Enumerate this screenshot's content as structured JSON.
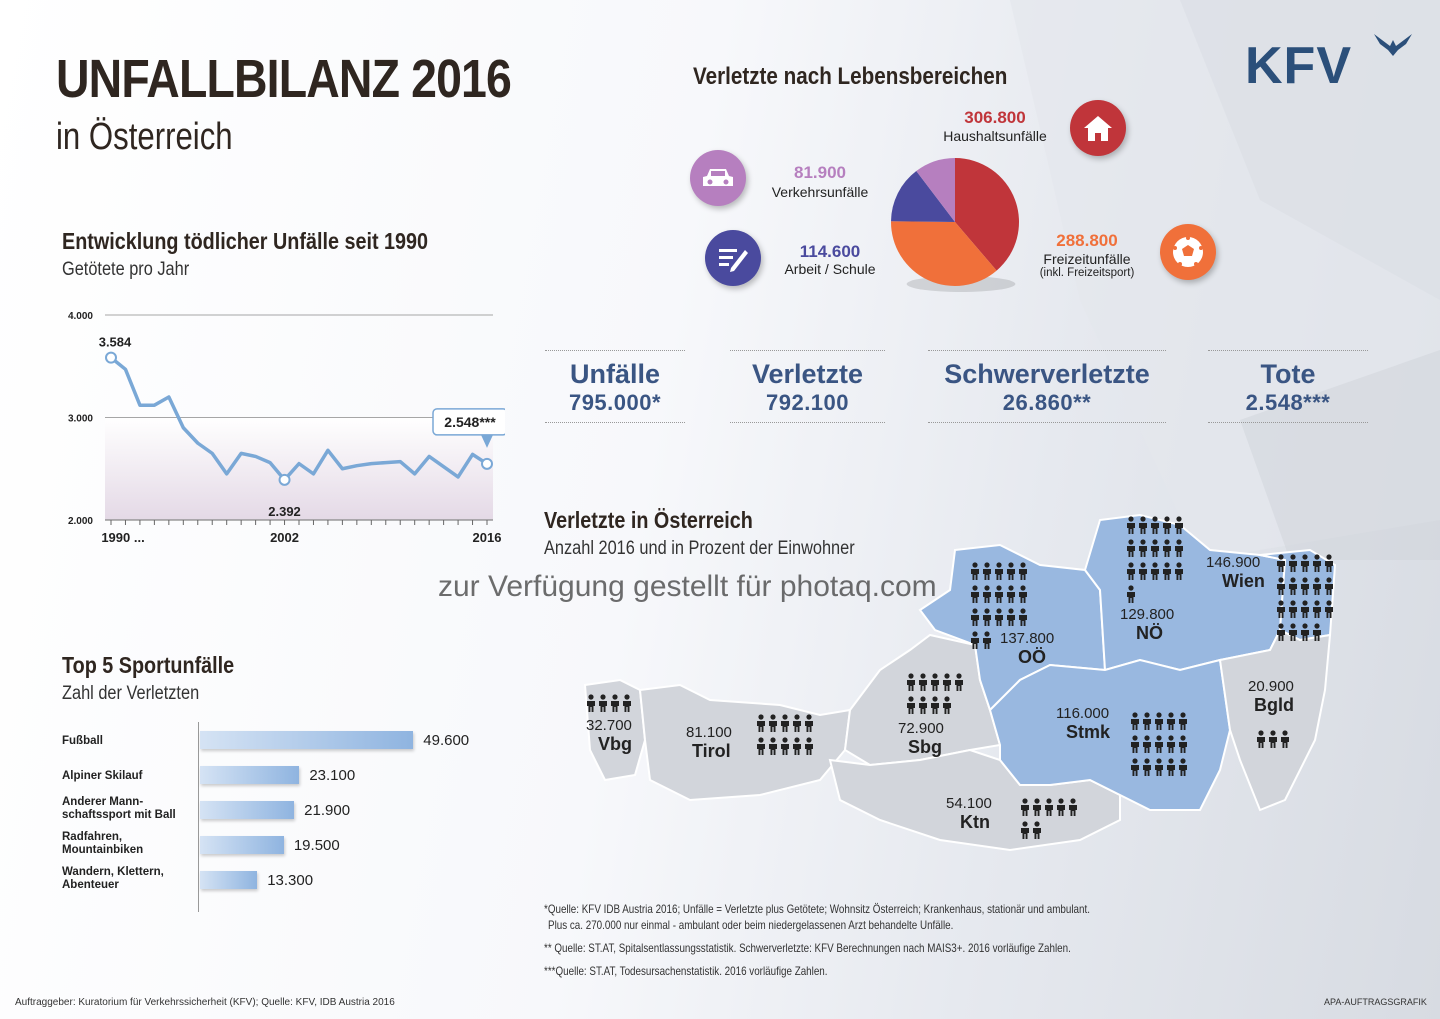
{
  "header": {
    "title": "UNFALLBILANZ 2016",
    "subtitle": "in Österreich",
    "logo": "KFV"
  },
  "life_areas": {
    "heading": "Verletzte nach Lebensbereichen",
    "items": [
      {
        "value": "306.800",
        "label": "Haushaltsunfälle",
        "color": "#c0353a",
        "icon": "house-icon"
      },
      {
        "value": "81.900",
        "label": "Verkehrsunfälle",
        "color": "#b67fbf",
        "icon": "car-icon"
      },
      {
        "value": "114.600",
        "label": "Arbeit / Schule",
        "color": "#4a4a9e",
        "icon": "pen-document-icon"
      },
      {
        "value": "288.800",
        "label": "Freizeitunfälle",
        "note": "(inkl. Freizeitsport)",
        "color": "#f0703a",
        "icon": "soccer-ball-icon"
      }
    ]
  },
  "stats": [
    {
      "label": "Unfälle",
      "value": "795.000*"
    },
    {
      "label": "Verletzte",
      "value": "792.100"
    },
    {
      "label": "Schwerverletzte",
      "value": "26.860**"
    },
    {
      "label": "Tote",
      "value": "2.548***"
    }
  ],
  "fatal": {
    "heading": "Entwicklung tödlicher Unfälle seit 1990",
    "sub": "Getötete pro Jahr"
  },
  "sports": {
    "heading": "Top 5 Sportunfälle",
    "sub": "Zahl der Verletzten"
  },
  "map": {
    "heading": "Verletzte in Österreich",
    "sub": "Anzahl 2016 und in Prozent der Einwohner",
    "regions": [
      {
        "name": "Vbg",
        "value": "32.700",
        "people": 4
      },
      {
        "name": "Tirol",
        "value": "81.100",
        "people": 10
      },
      {
        "name": "Sbg",
        "value": "72.900",
        "people": 9
      },
      {
        "name": "Ktn",
        "value": "54.100",
        "people": 7
      },
      {
        "name": "Stmk",
        "value": "116.000",
        "people": 15
      },
      {
        "name": "OÖ",
        "value": "137.800",
        "people": 17
      },
      {
        "name": "NÖ",
        "value": "129.800",
        "people": 16
      },
      {
        "name": "Wien",
        "value": "146.900",
        "people": 19
      },
      {
        "name": "Bgld",
        "value": "20.900",
        "people": 3
      }
    ]
  },
  "footnotes": {
    "f1": "*Quelle: KFV IDB Austria 2016; Unfälle = Verletzte plus Getötete; Wohnsitz Österreich; Krankenhaus, stationär und ambulant.",
    "f1b": "Plus ca. 270.000 nur einmal - ambulant oder beim niedergelassenen Arzt behandelte Unfälle.",
    "f2": "** Quelle: ST.AT, Spitalsentlassungsstatistik. Schwerverletzte: KFV Berechnungen nach MAIS3+. 2016 vorläufige Zahlen.",
    "f3": "***Quelle: ST.AT, Todesursachenstatistik. 2016 vorläufige Zahlen.",
    "credit": "Auftraggeber: Kuratorium für Verkehrssicherheit (KFV); Quelle: KFV, IDB Austria 2016",
    "agency": "APA-AUFTRAGSGRAFIK"
  },
  "watermark": "zur Verfügung gestellt für photaq.com",
  "chart_data": [
    {
      "type": "line",
      "title": "Entwicklung tödlicher Unfälle seit 1990",
      "subtitle": "Getötete pro Jahr",
      "x": [
        1990,
        1991,
        1992,
        1993,
        1994,
        1995,
        1996,
        1997,
        1998,
        1999,
        2000,
        2001,
        2002,
        2003,
        2004,
        2005,
        2006,
        2007,
        2008,
        2009,
        2010,
        2011,
        2012,
        2013,
        2014,
        2015,
        2016
      ],
      "y": [
        3584,
        3470,
        3120,
        3120,
        3200,
        2900,
        2750,
        2650,
        2450,
        2650,
        2620,
        2560,
        2392,
        2550,
        2450,
        2680,
        2500,
        2530,
        2550,
        2560,
        2570,
        2450,
        2620,
        2520,
        2420,
        2640,
        2548
      ],
      "ylim": [
        2000,
        4000
      ],
      "yticks": [
        "2.000",
        "3.000",
        "4.000"
      ],
      "xticks": [
        "1990 ...",
        "2002",
        "2016"
      ],
      "annotations": [
        {
          "x": 1990,
          "label": "3.584"
        },
        {
          "x": 2002,
          "label": "2.392"
        },
        {
          "x": 2016,
          "label": "2.548***"
        }
      ]
    },
    {
      "type": "bar",
      "title": "Top 5 Sportunfälle",
      "subtitle": "Zahl der Verletzten",
      "categories": [
        "Fußball",
        "Alpiner Skilauf",
        "Anderer Mann-\nschaftssport mit Ball",
        "Radfahren,\nMountainbiken",
        "Wandern, Klettern,\nAbenteuer"
      ],
      "values": [
        49600,
        23100,
        21900,
        19500,
        13300
      ],
      "labels": [
        "49.600",
        "23.100",
        "21.900",
        "19.500",
        "13.300"
      ],
      "xlim": [
        0,
        50000
      ]
    },
    {
      "type": "pie",
      "title": "Verletzte nach Lebensbereichen",
      "categories": [
        "Haushaltsunfälle",
        "Freizeitunfälle",
        "Arbeit / Schule",
        "Verkehrsunfälle"
      ],
      "values": [
        306800,
        288800,
        114600,
        81900
      ],
      "colors": [
        "#c0353a",
        "#f0703a",
        "#4a4a9e",
        "#b67fbf"
      ]
    }
  ]
}
